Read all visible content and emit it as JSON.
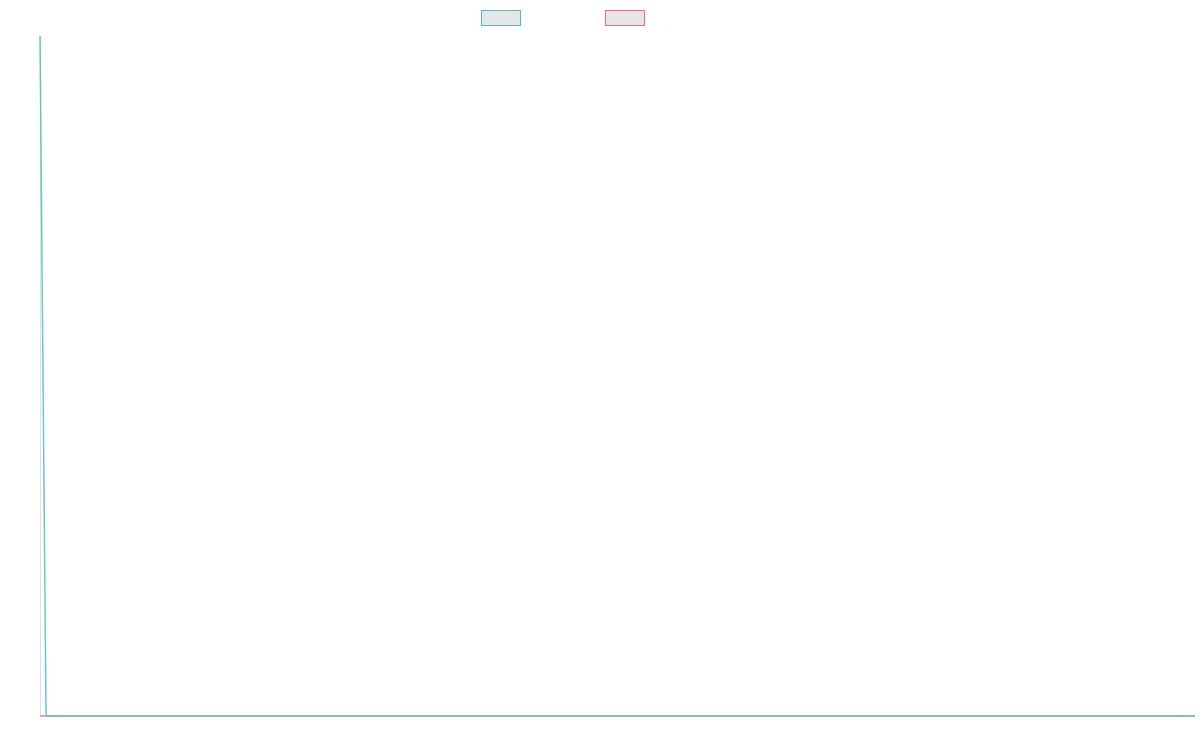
{
  "chart_data": {
    "type": "line",
    "title": "",
    "xlabel": "",
    "ylabel": "",
    "grid": false,
    "legend_placement": "top",
    "ylim": [
      0,
      1
    ],
    "series": [
      {
        "color": "#4bc0c0",
        "values": [
          1,
          0,
          0,
          0,
          0,
          0,
          0,
          0,
          0,
          0,
          0,
          0,
          0,
          0,
          0,
          0,
          0,
          0,
          0,
          0,
          0,
          0,
          0,
          0,
          0,
          0,
          0,
          0,
          0,
          0,
          0,
          0,
          0,
          0,
          0,
          0,
          0,
          0,
          0,
          0,
          0,
          0,
          0,
          0,
          0,
          0,
          0,
          0,
          0,
          0,
          0,
          0,
          0,
          0,
          0,
          0,
          0,
          0,
          0,
          0,
          0,
          0,
          0,
          0,
          0,
          0,
          0,
          0,
          0,
          0,
          0,
          0,
          0,
          0,
          0,
          0,
          0,
          0,
          0,
          0,
          0,
          0,
          0,
          0,
          0,
          0,
          0,
          0,
          0,
          0,
          0,
          0,
          0,
          0,
          0,
          0,
          0,
          0,
          0,
          0,
          0,
          0,
          0,
          0,
          0,
          0,
          0,
          0,
          0,
          0,
          0,
          0,
          0,
          0,
          0,
          0,
          0,
          0,
          0,
          0,
          0,
          0,
          0,
          0,
          0,
          0,
          0,
          0,
          0,
          0,
          0,
          0,
          0,
          0,
          0,
          0,
          0,
          0,
          0,
          0,
          0,
          0,
          0,
          0,
          0,
          0,
          0,
          0,
          0,
          0,
          0,
          0,
          0,
          0,
          0,
          0,
          0,
          0,
          0,
          0,
          0,
          0,
          0,
          0,
          0,
          0,
          0,
          0,
          0,
          0,
          0,
          0,
          0,
          0,
          0,
          0,
          0,
          0,
          0,
          0,
          0,
          0,
          0,
          0,
          0,
          0,
          0,
          0,
          0,
          0,
          0,
          0,
          0
        ]
      },
      {
        "color": "#ff6384",
        "values": [
          0,
          0,
          0,
          0,
          0,
          0,
          0,
          0,
          0,
          0,
          0,
          0,
          0,
          0,
          0,
          0,
          0,
          0,
          0,
          0,
          0,
          0,
          0,
          0,
          0,
          0,
          0,
          0,
          0,
          0,
          0,
          0,
          0,
          0,
          0,
          0,
          0,
          0,
          0,
          0,
          0,
          0,
          0,
          0,
          0,
          0,
          0,
          0,
          0,
          0,
          0,
          0,
          0,
          0,
          0,
          0,
          0,
          0,
          0,
          0,
          0,
          0,
          0,
          0,
          0,
          0,
          0,
          0,
          0,
          0,
          0,
          0,
          0,
          0,
          0,
          0,
          0,
          0,
          0,
          0,
          0,
          0,
          0,
          0,
          0,
          0,
          0,
          0,
          0,
          0,
          0,
          0,
          0,
          0,
          0,
          0,
          0,
          0,
          0,
          0,
          0,
          0,
          0,
          0,
          0,
          0,
          0,
          0,
          0,
          0,
          0,
          0,
          0,
          0,
          0,
          0,
          0,
          0,
          0,
          0,
          0,
          0,
          0,
          0,
          0,
          0,
          0,
          0,
          0,
          0,
          0,
          0,
          0,
          0,
          0,
          0,
          0,
          0,
          0,
          0,
          0,
          0,
          0,
          0,
          0,
          0,
          0,
          0,
          0,
          0,
          0,
          0,
          0,
          0,
          0,
          0,
          0,
          0,
          0,
          0,
          0,
          0,
          0,
          0,
          0,
          0,
          0,
          0,
          0,
          0,
          0,
          0,
          0,
          0,
          0,
          0,
          0,
          0,
          0,
          0,
          0,
          0,
          0,
          0,
          0,
          0,
          0,
          0,
          0,
          0,
          0,
          0,
          0
        ]
      }
    ]
  }
}
